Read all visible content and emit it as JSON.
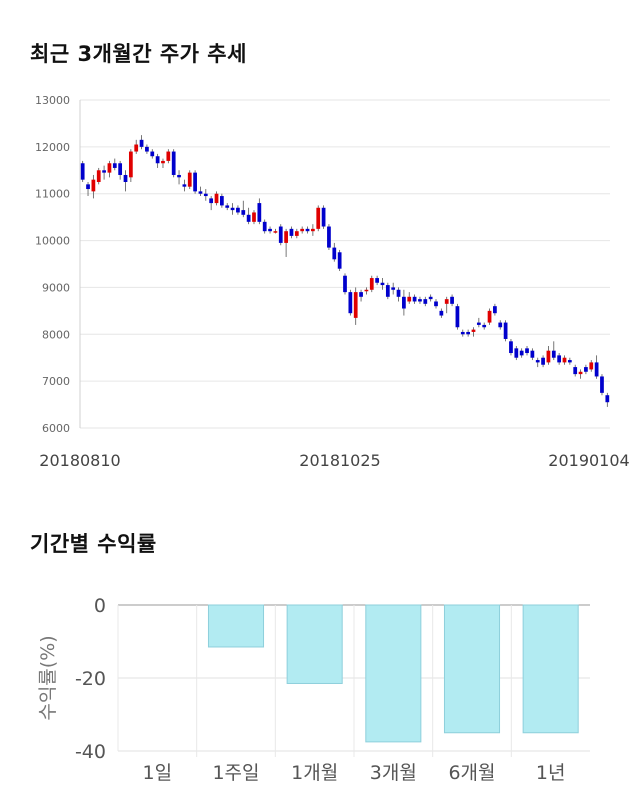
{
  "sections": {
    "price_title": "최근 3개월간 주가 추세",
    "returns_title": "기간별 수익률"
  },
  "colors": {
    "up": "#e00000",
    "down": "#0000cc",
    "return_bar": "#b2ebf2",
    "return_bar_edge": "#8ecfdb"
  },
  "chart_data": [
    {
      "type": "candlestick",
      "title": "최근 3개월간 주가 추세",
      "ylim": [
        6000,
        13000
      ],
      "yticks": [
        6000,
        7000,
        8000,
        9000,
        10000,
        11000,
        12000,
        13000
      ],
      "xticks": [
        "20180810",
        "20181025",
        "20190104"
      ],
      "grid": true,
      "candles": [
        [
          11650,
          11700,
          11250,
          11300
        ],
        [
          11200,
          11250,
          10950,
          11100
        ],
        [
          11050,
          11400,
          10900,
          11300
        ],
        [
          11250,
          11550,
          11200,
          11500
        ],
        [
          11500,
          11600,
          11300,
          11450
        ],
        [
          11450,
          11700,
          11350,
          11650
        ],
        [
          11650,
          11750,
          11500,
          11550
        ],
        [
          11650,
          11700,
          11300,
          11400
        ],
        [
          11400,
          11500,
          11050,
          11250
        ],
        [
          11350,
          11950,
          11250,
          11900
        ],
        [
          11900,
          12150,
          11850,
          12050
        ],
        [
          12150,
          12250,
          11950,
          12000
        ],
        [
          12000,
          12050,
          11850,
          11900
        ],
        [
          11900,
          11950,
          11750,
          11800
        ],
        [
          11800,
          11850,
          11550,
          11650
        ],
        [
          11650,
          11750,
          11550,
          11700
        ],
        [
          11700,
          11950,
          11650,
          11900
        ],
        [
          11900,
          11950,
          11350,
          11400
        ],
        [
          11400,
          11500,
          11200,
          11350
        ],
        [
          11200,
          11300,
          11050,
          11150
        ],
        [
          11150,
          11500,
          11100,
          11450
        ],
        [
          11450,
          11500,
          11000,
          11050
        ],
        [
          11050,
          11150,
          10950,
          11000
        ],
        [
          11000,
          11100,
          10850,
          10950
        ],
        [
          10900,
          10950,
          10650,
          10800
        ],
        [
          10800,
          11050,
          10750,
          11000
        ],
        [
          10950,
          11000,
          10700,
          10750
        ],
        [
          10750,
          10800,
          10650,
          10700
        ],
        [
          10700,
          10800,
          10550,
          10650
        ],
        [
          10700,
          10750,
          10550,
          10600
        ],
        [
          10650,
          10850,
          10500,
          10550
        ],
        [
          10550,
          10700,
          10350,
          10400
        ],
        [
          10400,
          10650,
          10350,
          10600
        ],
        [
          10800,
          10900,
          10350,
          10400
        ],
        [
          10400,
          10450,
          10150,
          10200
        ],
        [
          10250,
          10300,
          10150,
          10200
        ],
        [
          10200,
          10250,
          10150,
          10200
        ],
        [
          10300,
          10350,
          9900,
          9950
        ],
        [
          9950,
          10250,
          9650,
          10200
        ],
        [
          10250,
          10300,
          10050,
          10100
        ],
        [
          10100,
          10250,
          10050,
          10200
        ],
        [
          10200,
          10300,
          10150,
          10250
        ],
        [
          10250,
          10300,
          10150,
          10200
        ],
        [
          10200,
          10350,
          10100,
          10250
        ],
        [
          10250,
          10750,
          10200,
          10700
        ],
        [
          10700,
          10750,
          10250,
          10300
        ],
        [
          10300,
          10350,
          9800,
          9850
        ],
        [
          9850,
          9950,
          9550,
          9600
        ],
        [
          9750,
          9800,
          9350,
          9400
        ],
        [
          9250,
          9300,
          8850,
          8900
        ],
        [
          8900,
          8950,
          8400,
          8450
        ],
        [
          8350,
          9000,
          8200,
          8900
        ],
        [
          8900,
          8950,
          8700,
          8800
        ],
        [
          8950,
          9000,
          8850,
          8950
        ],
        [
          8950,
          9250,
          8900,
          9200
        ],
        [
          9200,
          9250,
          9050,
          9100
        ],
        [
          9100,
          9200,
          8950,
          9050
        ],
        [
          9050,
          9100,
          8750,
          8800
        ],
        [
          9000,
          9100,
          8850,
          8950
        ],
        [
          8950,
          9000,
          8700,
          8800
        ],
        [
          8800,
          8950,
          8400,
          8550
        ],
        [
          8700,
          8900,
          8650,
          8800
        ],
        [
          8800,
          8850,
          8650,
          8700
        ],
        [
          8750,
          8800,
          8650,
          8700
        ],
        [
          8750,
          8800,
          8600,
          8650
        ],
        [
          8800,
          8850,
          8700,
          8750
        ],
        [
          8700,
          8750,
          8550,
          8600
        ],
        [
          8500,
          8550,
          8350,
          8400
        ],
        [
          8650,
          8800,
          8450,
          8750
        ],
        [
          8800,
          8850,
          8600,
          8650
        ],
        [
          8600,
          8650,
          8100,
          8150
        ],
        [
          8050,
          8100,
          7950,
          8000
        ],
        [
          8050,
          8100,
          7950,
          8000
        ],
        [
          8050,
          8150,
          7950,
          8100
        ],
        [
          8250,
          8350,
          8150,
          8200
        ],
        [
          8200,
          8250,
          8100,
          8150
        ],
        [
          8250,
          8550,
          8200,
          8500
        ],
        [
          8600,
          8650,
          8400,
          8450
        ],
        [
          8250,
          8300,
          8100,
          8150
        ],
        [
          8250,
          8300,
          7850,
          7900
        ],
        [
          7850,
          7900,
          7550,
          7600
        ],
        [
          7700,
          7750,
          7450,
          7500
        ],
        [
          7650,
          7700,
          7500,
          7550
        ],
        [
          7700,
          7750,
          7550,
          7600
        ],
        [
          7650,
          7700,
          7450,
          7500
        ],
        [
          7450,
          7500,
          7300,
          7400
        ],
        [
          7500,
          7550,
          7300,
          7350
        ],
        [
          7400,
          7750,
          7350,
          7650
        ],
        [
          7650,
          7850,
          7450,
          7500
        ],
        [
          7550,
          7600,
          7350,
          7400
        ],
        [
          7400,
          7550,
          7350,
          7500
        ],
        [
          7450,
          7500,
          7350,
          7400
        ],
        [
          7300,
          7350,
          7100,
          7150
        ],
        [
          7150,
          7250,
          7050,
          7200
        ],
        [
          7300,
          7350,
          7150,
          7200
        ],
        [
          7250,
          7450,
          7200,
          7400
        ],
        [
          7400,
          7550,
          7050,
          7100
        ],
        [
          7100,
          7150,
          6700,
          6750
        ],
        [
          6700,
          6750,
          6450,
          6550
        ]
      ]
    },
    {
      "type": "bar",
      "title": "기간별 수익률",
      "ylabel": "수익률(%)",
      "ylim": [
        -40,
        0
      ],
      "yticks": [
        0,
        -20,
        -40
      ],
      "categories": [
        "1일",
        "1주일",
        "1개월",
        "3개월",
        "6개월",
        "1년"
      ],
      "values": [
        0,
        -11.5,
        -21.5,
        -37.5,
        -35,
        -35
      ],
      "grid": true
    }
  ]
}
